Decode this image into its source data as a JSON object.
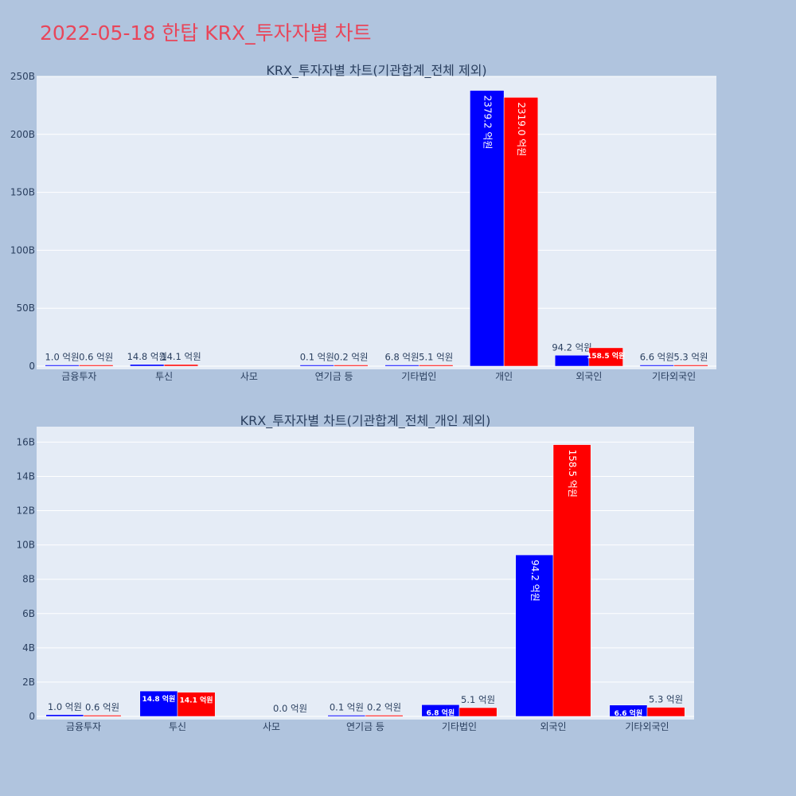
{
  "page_title": "2022-05-18 한탑 KRX_투자자별 차트",
  "colors": {
    "buy": "#0000ff",
    "sell": "#ff0000",
    "plot_bg": "#e5ecf6",
    "page_bg": "#b0c4de",
    "title": "#e8465a"
  },
  "chart_data": [
    {
      "type": "bar",
      "title": "KRX_투자자별 차트(기관합계_전체 제외)",
      "categories": [
        "금융투자",
        "투신",
        "사모",
        "연기금 등",
        "기타법인",
        "개인",
        "외국인",
        "기타외국인"
      ],
      "series": [
        {
          "color": "#0000ff",
          "values": [
            0.1,
            1.48,
            0,
            0.01,
            0.68,
            237.92,
            9.42,
            0.66
          ],
          "labels": [
            "1.0 억원",
            "14.8 억원",
            "",
            "0.1 억원",
            "6.8 억원",
            "2379.2 억원",
            "94.2 억원",
            "6.6 억원"
          ]
        },
        {
          "color": "#ff0000",
          "values": [
            0.06,
            1.41,
            0,
            0.02,
            0.51,
            231.9,
            15.85,
            0.53
          ],
          "labels": [
            "0.6 억원",
            "14.1 억원",
            "",
            "0.2 억원",
            "5.1 억원",
            "2319.0 억원",
            "158.5 억원",
            "5.3 억원"
          ]
        }
      ],
      "ylim": [
        0,
        250
      ],
      "yticks": [
        0,
        50,
        100,
        150,
        200,
        250
      ],
      "yticklabels": [
        "0",
        "50B",
        "100B",
        "150B",
        "200B",
        "250B"
      ],
      "grid": true
    },
    {
      "type": "bar",
      "title": "KRX_투자자별 차트(기관합계_전체_개인 제외)",
      "categories": [
        "금융투자",
        "투신",
        "사모",
        "연기금 등",
        "기타법인",
        "외국인",
        "기타외국인"
      ],
      "series": [
        {
          "color": "#0000ff",
          "values": [
            0.1,
            1.48,
            0,
            0.01,
            0.68,
            9.42,
            0.66
          ],
          "labels": [
            "1.0 억원",
            "14.8 억원",
            "",
            "0.1 억원",
            "6.8 억원",
            "94.2 억원",
            "6.6 억원"
          ]
        },
        {
          "color": "#ff0000",
          "values": [
            0.06,
            1.41,
            0,
            0.02,
            0.51,
            15.85,
            0.53
          ],
          "labels": [
            "0.6 억원",
            "14.1 억원",
            "0.0 억원",
            "0.2 억원",
            "5.1 억원",
            "158.5 억원",
            "5.3 억원"
          ]
        }
      ],
      "ylim": [
        0,
        16.9
      ],
      "yticks": [
        0,
        2,
        4,
        6,
        8,
        10,
        12,
        14,
        16
      ],
      "yticklabels": [
        "0",
        "2B",
        "4B",
        "6B",
        "8B",
        "10B",
        "12B",
        "14B",
        "16B"
      ],
      "grid": true
    }
  ]
}
